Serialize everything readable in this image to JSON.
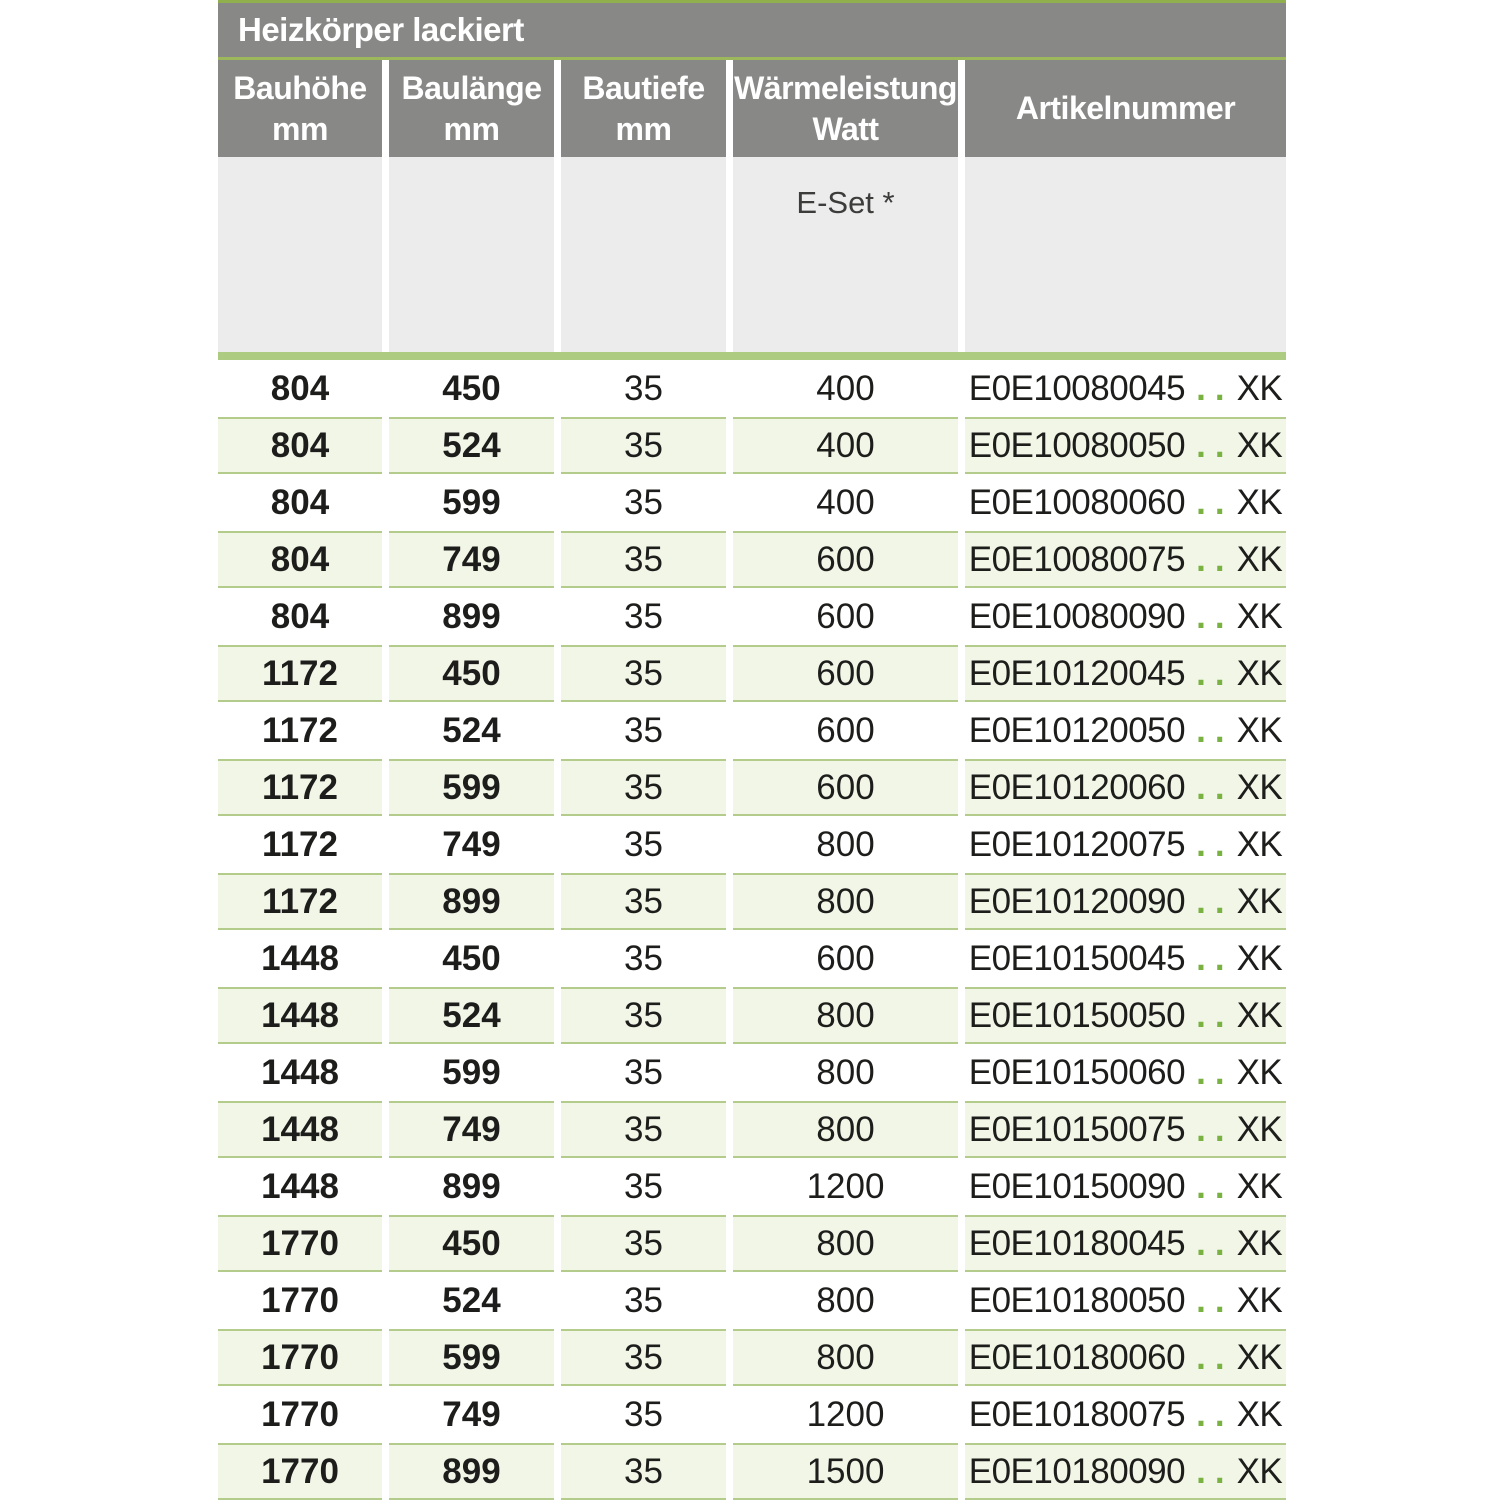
{
  "table": {
    "title": "Heizkörper lackiert",
    "columns": [
      {
        "line1": "Bauhöhe",
        "line2": "mm"
      },
      {
        "line1": "Baulänge",
        "line2": "mm"
      },
      {
        "line1": "Bautiefe",
        "line2": "mm"
      },
      {
        "line1": "Wärmeleistung",
        "line2": "Watt"
      },
      {
        "line1": "Artikelnummer"
      }
    ],
    "subheader": {
      "eset_label": "E-Set *"
    },
    "rows": [
      {
        "bauhoehe": "804",
        "baulaenge": "450",
        "bautiefe": "35",
        "watt": "400",
        "artikel_prefix": "E0E10080045",
        "artikel_dots": "..",
        "artikel_suffix": "XK"
      },
      {
        "bauhoehe": "804",
        "baulaenge": "524",
        "bautiefe": "35",
        "watt": "400",
        "artikel_prefix": "E0E10080050",
        "artikel_dots": "..",
        "artikel_suffix": "XK"
      },
      {
        "bauhoehe": "804",
        "baulaenge": "599",
        "bautiefe": "35",
        "watt": "400",
        "artikel_prefix": "E0E10080060",
        "artikel_dots": "..",
        "artikel_suffix": "XK"
      },
      {
        "bauhoehe": "804",
        "baulaenge": "749",
        "bautiefe": "35",
        "watt": "600",
        "artikel_prefix": "E0E10080075",
        "artikel_dots": "..",
        "artikel_suffix": "XK"
      },
      {
        "bauhoehe": "804",
        "baulaenge": "899",
        "bautiefe": "35",
        "watt": "600",
        "artikel_prefix": "E0E10080090",
        "artikel_dots": "..",
        "artikel_suffix": "XK"
      },
      {
        "bauhoehe": "1172",
        "baulaenge": "450",
        "bautiefe": "35",
        "watt": "600",
        "artikel_prefix": "E0E10120045",
        "artikel_dots": "..",
        "artikel_suffix": "XK"
      },
      {
        "bauhoehe": "1172",
        "baulaenge": "524",
        "bautiefe": "35",
        "watt": "600",
        "artikel_prefix": "E0E10120050",
        "artikel_dots": "..",
        "artikel_suffix": "XK"
      },
      {
        "bauhoehe": "1172",
        "baulaenge": "599",
        "bautiefe": "35",
        "watt": "600",
        "artikel_prefix": "E0E10120060",
        "artikel_dots": "..",
        "artikel_suffix": "XK"
      },
      {
        "bauhoehe": "1172",
        "baulaenge": "749",
        "bautiefe": "35",
        "watt": "800",
        "artikel_prefix": "E0E10120075",
        "artikel_dots": "..",
        "artikel_suffix": "XK"
      },
      {
        "bauhoehe": "1172",
        "baulaenge": "899",
        "bautiefe": "35",
        "watt": "800",
        "artikel_prefix": "E0E10120090",
        "artikel_dots": "..",
        "artikel_suffix": "XK"
      },
      {
        "bauhoehe": "1448",
        "baulaenge": "450",
        "bautiefe": "35",
        "watt": "600",
        "artikel_prefix": "E0E10150045",
        "artikel_dots": "..",
        "artikel_suffix": "XK"
      },
      {
        "bauhoehe": "1448",
        "baulaenge": "524",
        "bautiefe": "35",
        "watt": "800",
        "artikel_prefix": "E0E10150050",
        "artikel_dots": "..",
        "artikel_suffix": "XK"
      },
      {
        "bauhoehe": "1448",
        "baulaenge": "599",
        "bautiefe": "35",
        "watt": "800",
        "artikel_prefix": "E0E10150060",
        "artikel_dots": "..",
        "artikel_suffix": "XK"
      },
      {
        "bauhoehe": "1448",
        "baulaenge": "749",
        "bautiefe": "35",
        "watt": "800",
        "artikel_prefix": "E0E10150075",
        "artikel_dots": "..",
        "artikel_suffix": "XK"
      },
      {
        "bauhoehe": "1448",
        "baulaenge": "899",
        "bautiefe": "35",
        "watt": "1200",
        "artikel_prefix": "E0E10150090",
        "artikel_dots": "..",
        "artikel_suffix": "XK"
      },
      {
        "bauhoehe": "1770",
        "baulaenge": "450",
        "bautiefe": "35",
        "watt": "800",
        "artikel_prefix": "E0E10180045",
        "artikel_dots": "..",
        "artikel_suffix": "XK"
      },
      {
        "bauhoehe": "1770",
        "baulaenge": "524",
        "bautiefe": "35",
        "watt": "800",
        "artikel_prefix": "E0E10180050",
        "artikel_dots": "..",
        "artikel_suffix": "XK"
      },
      {
        "bauhoehe": "1770",
        "baulaenge": "599",
        "bautiefe": "35",
        "watt": "800",
        "artikel_prefix": "E0E10180060",
        "artikel_dots": "..",
        "artikel_suffix": "XK"
      },
      {
        "bauhoehe": "1770",
        "baulaenge": "749",
        "bautiefe": "35",
        "watt": "1200",
        "artikel_prefix": "E0E10180075",
        "artikel_dots": "..",
        "artikel_suffix": "XK"
      },
      {
        "bauhoehe": "1770",
        "baulaenge": "899",
        "bautiefe": "35",
        "watt": "1500",
        "artikel_prefix": "E0E10180090",
        "artikel_dots": "..",
        "artikel_suffix": "XK"
      }
    ]
  },
  "colors": {
    "header_gray": "#888886",
    "subheader_gray": "#ececec",
    "accent_line": "#8fb04d",
    "green_bar": "#aecb82",
    "row_border_green": "#b3cc8c",
    "row_fill_green": "#f1f6e7",
    "dots_green": "#79b240",
    "text": "#1d1d1b"
  }
}
